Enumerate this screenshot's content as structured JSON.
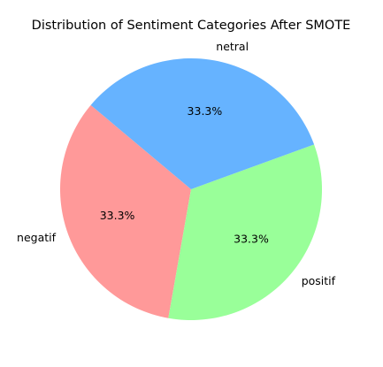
{
  "chart_data": {
    "type": "pie",
    "title": "Distribution of Sentiment Categories After SMOTE",
    "slices": [
      {
        "label": "negatif",
        "value": 33.3,
        "pct_label": "33.3%",
        "color": "#ff9999"
      },
      {
        "label": "positif",
        "value": 33.3,
        "pct_label": "33.3%",
        "color": "#99ff99"
      },
      {
        "label": "netral",
        "value": 33.3,
        "pct_label": "33.3%",
        "color": "#66b3ff"
      }
    ],
    "start_angle_deg": 140,
    "direction": "counterclockwise",
    "legend": "none"
  }
}
